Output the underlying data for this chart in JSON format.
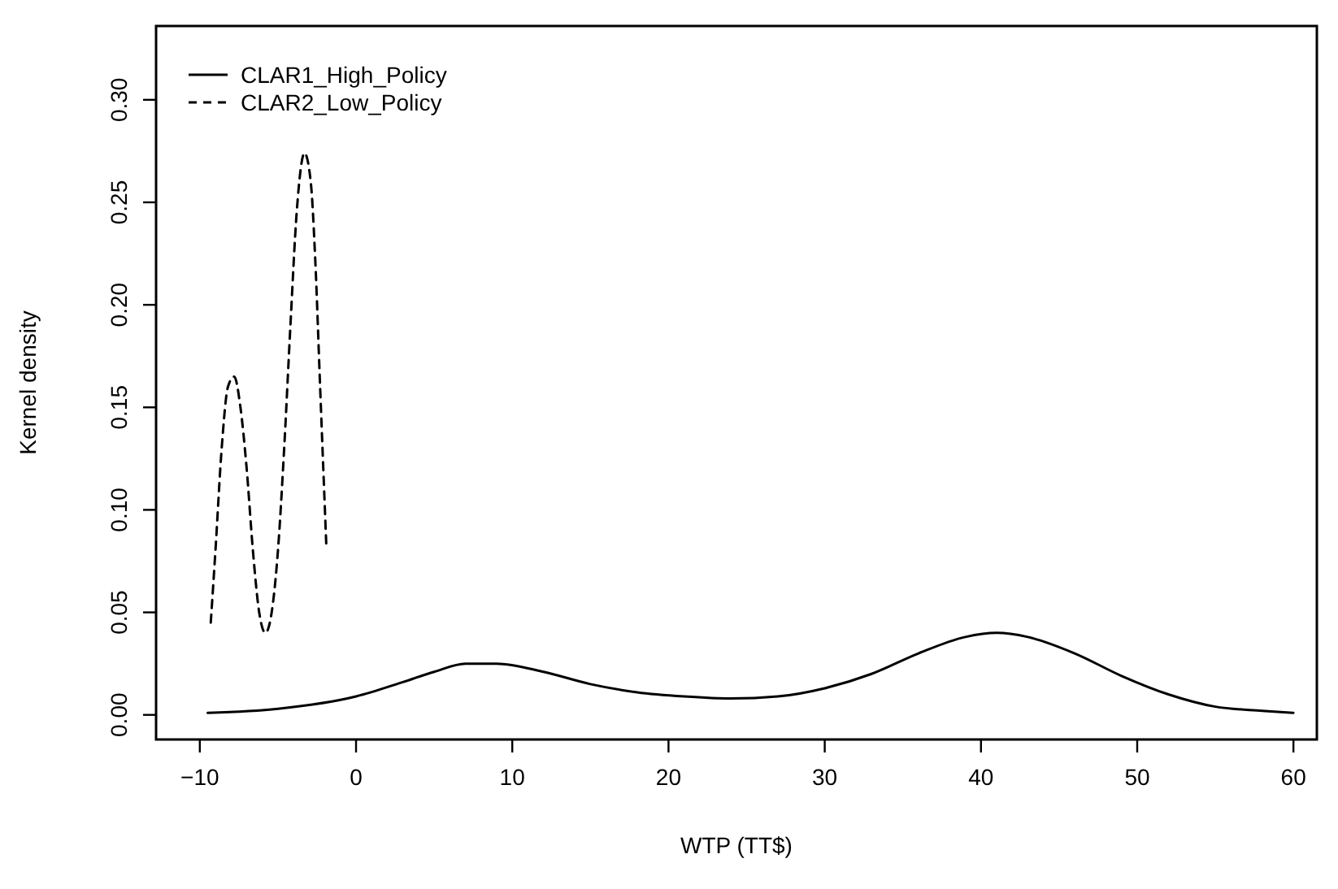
{
  "chart_data": {
    "type": "line",
    "xlabel": "WTP (TT$)",
    "ylabel": "Kernel density",
    "xlim": [
      -12.8,
      61.5
    ],
    "ylim": [
      -0.012,
      0.336
    ],
    "xticks": [
      -10,
      0,
      10,
      20,
      30,
      40,
      50,
      60
    ],
    "yticks": [
      {
        "value": 0,
        "label": "0.00"
      },
      {
        "value": 0.05,
        "label": "0.05"
      },
      {
        "value": 0.1,
        "label": "0.10"
      },
      {
        "value": 0.15,
        "label": "0.15"
      },
      {
        "value": 0.2,
        "label": "0.20"
      },
      {
        "value": 0.25,
        "label": "0.25"
      },
      {
        "value": 0.3,
        "label": "0.30"
      }
    ],
    "legend": "top left",
    "grid": false,
    "marker": "none",
    "series": [
      {
        "name": "CLAR1_High_Policy",
        "color": "#000000",
        "line_style": "solid",
        "x": [
          -9.5,
          -5,
          0,
          3,
          5,
          7,
          9,
          12,
          15,
          18,
          21,
          24,
          27,
          30,
          33,
          36,
          39,
          41,
          43,
          46,
          49,
          52,
          55,
          58,
          60
        ],
        "values": [
          0.001,
          0.003,
          0.009,
          0.016,
          0.021,
          0.025,
          0.025,
          0.021,
          0.015,
          0.011,
          0.009,
          0.008,
          0.009,
          0.013,
          0.02,
          0.03,
          0.038,
          0.04,
          0.038,
          0.03,
          0.019,
          0.01,
          0.004,
          0.002,
          0.001
        ]
      },
      {
        "name": "CLAR2_Low_Policy",
        "color": "#000000",
        "line_style": "dashed",
        "x": [
          -9.3,
          -9,
          -8.6,
          -8.2,
          -7.8,
          -7.4,
          -7,
          -6.6,
          -6.2,
          -5.8,
          -5.4,
          -5,
          -4.6,
          -4.2,
          -3.8,
          -3.3,
          -2.9,
          -2.6,
          -2.3,
          -1.9
        ],
        "values": [
          0.045,
          0.08,
          0.13,
          0.16,
          0.165,
          0.15,
          0.12,
          0.08,
          0.05,
          0.04,
          0.05,
          0.08,
          0.13,
          0.19,
          0.245,
          0.274,
          0.26,
          0.22,
          0.16,
          0.082
        ]
      }
    ]
  }
}
